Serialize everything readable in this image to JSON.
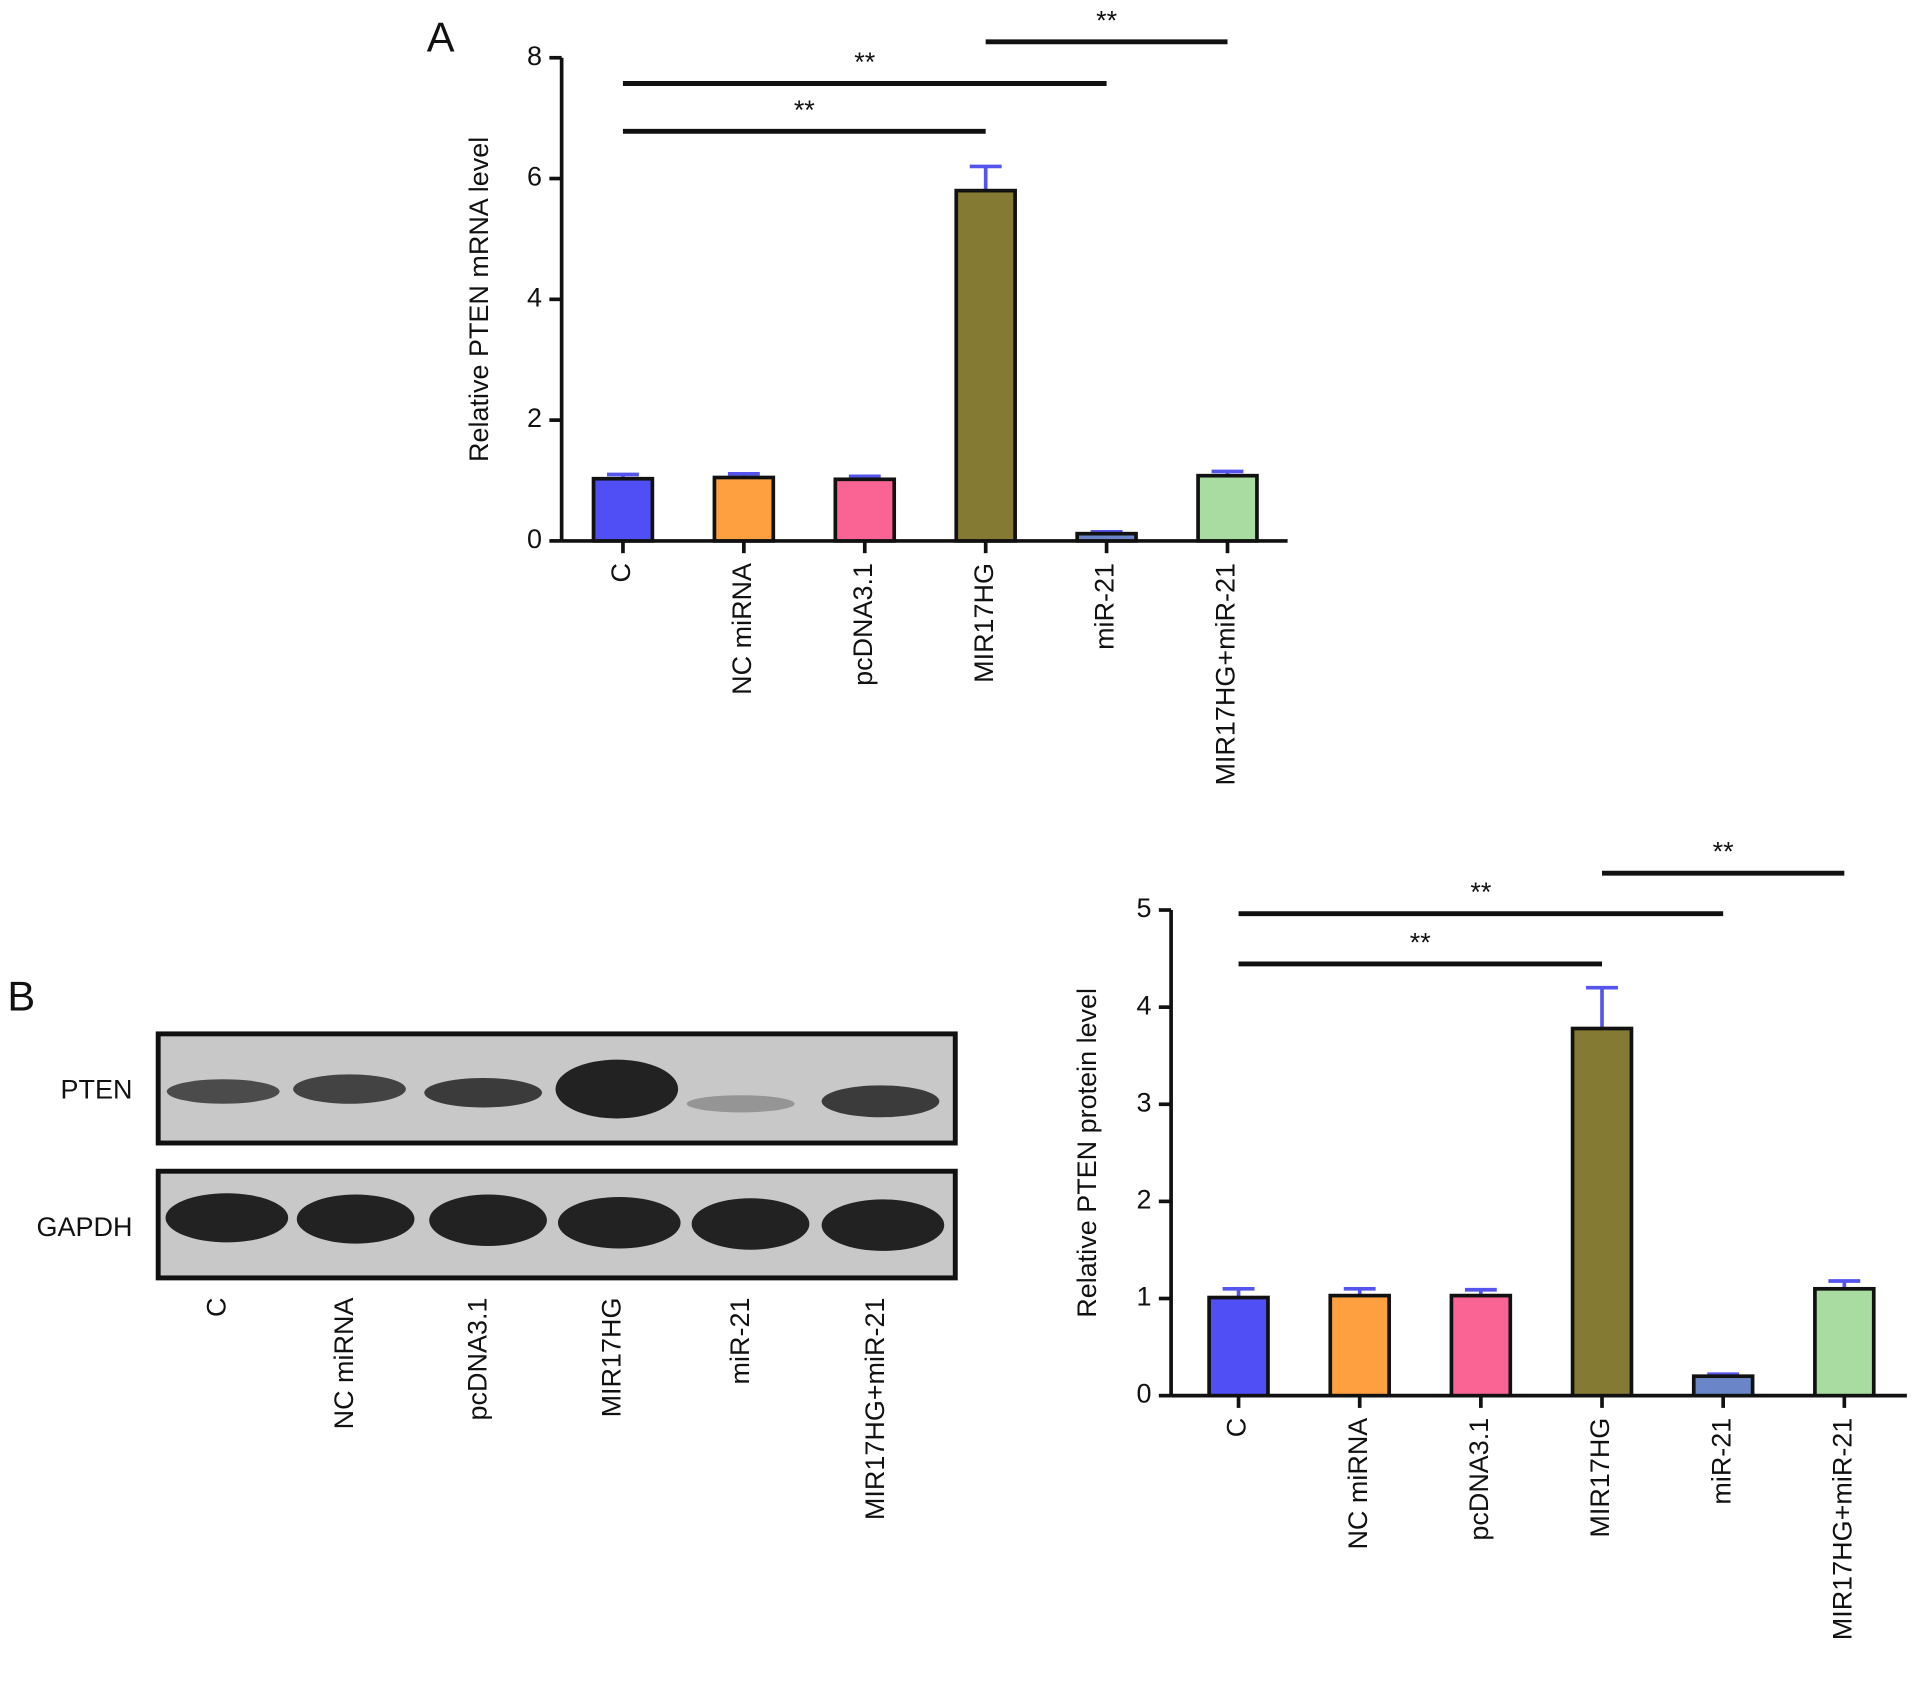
{
  "chart_data": [
    {
      "type": "bar",
      "panel_label": "A",
      "y_label": "Relative PTEN mRNA level",
      "categories": [
        "C",
        "NC miRNA",
        "pcDNA3.1",
        "MIR17HG",
        "miR-21",
        "MIR17HG+miR-21"
      ],
      "values": [
        1.03,
        1.05,
        1.02,
        5.8,
        0.12,
        1.08
      ],
      "errors": [
        0.07,
        0.06,
        0.05,
        0.4,
        0.03,
        0.07
      ],
      "colors": [
        "#4f4ff5",
        "#ffa040",
        "#f96494",
        "#857a33",
        "#6a86c8",
        "#a8dca0"
      ],
      "error_color": "#5555ee",
      "ylim": [
        0,
        8
      ],
      "yticks": [
        0,
        2,
        4,
        6,
        8
      ],
      "significance": [
        {
          "from": 0,
          "to": 3,
          "label": "**"
        },
        {
          "from": 0,
          "to": 4,
          "label": "**"
        },
        {
          "from": 3,
          "to": 5,
          "label": "**"
        }
      ]
    },
    {
      "type": "bar",
      "panel_label": "B",
      "y_label": "Relative PTEN protein level",
      "categories": [
        "C",
        "NC miRNA",
        "pcDNA3.1",
        "MIR17HG",
        "miR-21",
        "MIR17HG+miR-21"
      ],
      "values": [
        1.01,
        1.03,
        1.03,
        3.78,
        0.2,
        1.1
      ],
      "errors": [
        0.09,
        0.07,
        0.06,
        0.42,
        0.02,
        0.08
      ],
      "colors": [
        "#4f4ff5",
        "#ffa040",
        "#f96494",
        "#857a33",
        "#6a86c8",
        "#a8dca0"
      ],
      "error_color": "#5555ee",
      "ylim": [
        0,
        5
      ],
      "yticks": [
        0,
        1,
        2,
        3,
        4,
        5
      ],
      "significance": [
        {
          "from": 0,
          "to": 3,
          "label": "**"
        },
        {
          "from": 0,
          "to": 4,
          "label": "**"
        },
        {
          "from": 3,
          "to": 5,
          "label": "**"
        }
      ]
    }
  ],
  "blot": {
    "rows": [
      "PTEN",
      "GAPDH"
    ],
    "lanes": [
      "C",
      "NC miRNA",
      "pcDNA3.1",
      "MIR17HG",
      "miR-21",
      "MIR17HG+miR-21"
    ]
  }
}
